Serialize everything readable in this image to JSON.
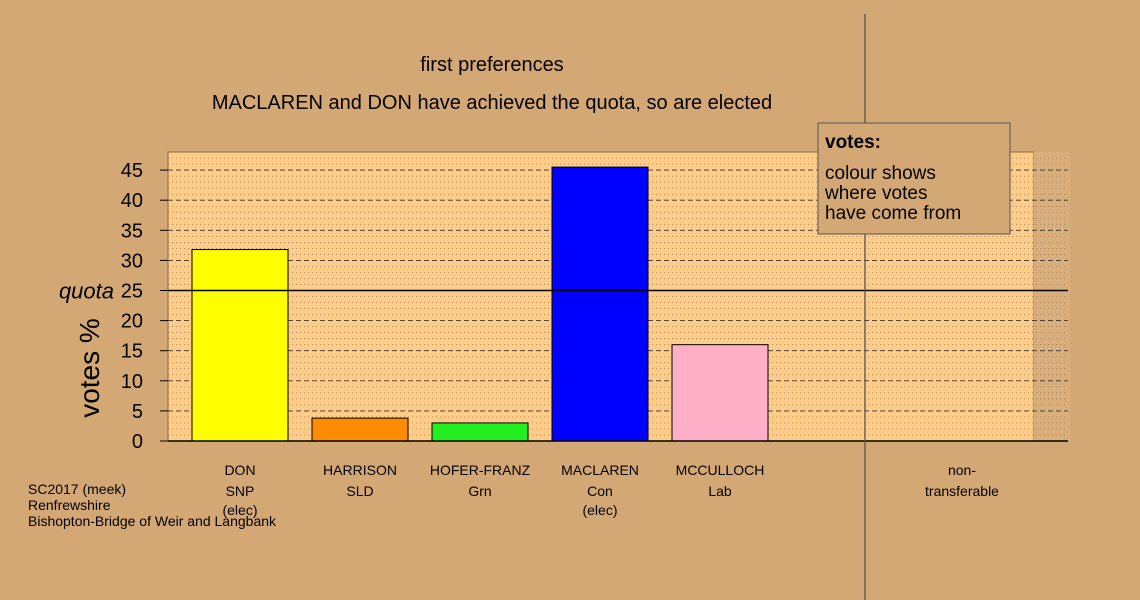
{
  "chart_data": {
    "type": "bar",
    "title": "first preferences",
    "subtitle": "MACLAREN and DON have achieved the quota, so are elected",
    "ylabel": "votes %",
    "quota_label": "quota",
    "quota": 25,
    "ylim": [
      0,
      47
    ],
    "yticks": [
      0,
      5,
      10,
      15,
      20,
      25,
      30,
      35,
      40,
      45
    ],
    "grid": true,
    "bars": [
      {
        "name": "DON",
        "party": "SNP",
        "status": "(elec)",
        "value": 31.8,
        "color": "#FFFF00"
      },
      {
        "name": "HARRISON",
        "party": "SLD",
        "status": "",
        "value": 3.8,
        "color": "#FF8C00"
      },
      {
        "name": "HOFER-FRANZ",
        "party": "Grn",
        "status": "",
        "value": 3.0,
        "color": "#22EE22"
      },
      {
        "name": "MACLAREN",
        "party": "Con",
        "status": "(elec)",
        "value": 45.5,
        "color": "#0000FF"
      },
      {
        "name": "MCCULLOCH",
        "party": "Lab",
        "status": "",
        "value": 16.0,
        "color": "#FFB0C8"
      }
    ],
    "nontransferable": {
      "line1": "non-",
      "line2": "transferable",
      "value": 0
    },
    "legend": {
      "title": "votes:",
      "lines": [
        "colour shows",
        "where votes",
        "have come from"
      ]
    }
  },
  "footer": {
    "line1": "SC2017 (meek)",
    "line2": "Renfrewshire",
    "line3": "Bishopton-Bridge of Weir and Langbank"
  },
  "colors": {
    "page_bg": "#D4A874",
    "plot_bg": "#FFCC88",
    "right_panel_bg": "#D9AE7A",
    "legend_bg": "#D4A874"
  }
}
